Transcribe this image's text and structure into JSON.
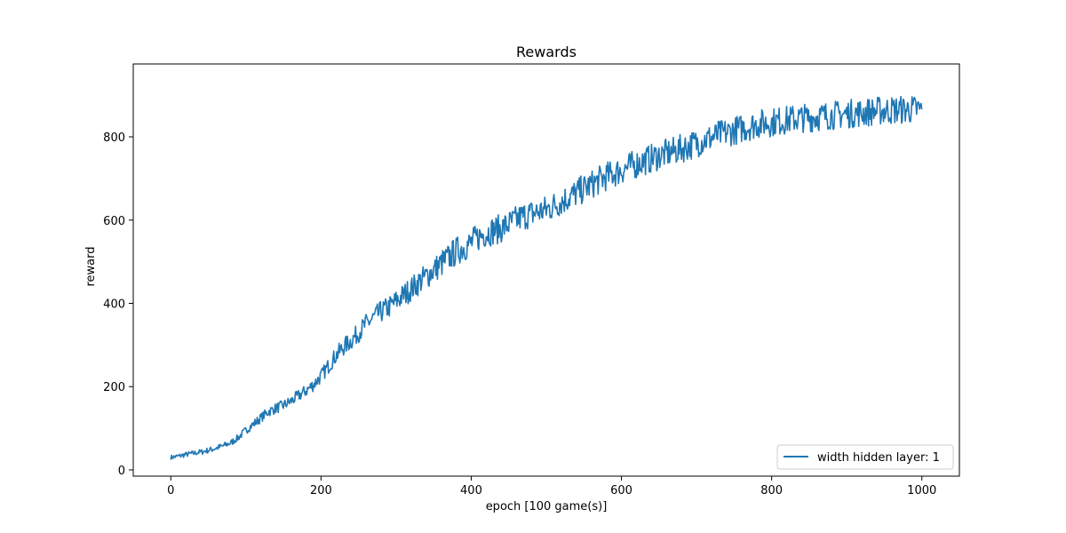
{
  "chart_data": {
    "type": "line",
    "title": "Rewards",
    "xlabel": "epoch [100 game(s)]",
    "ylabel": "reward",
    "xlim": [
      -50,
      1050
    ],
    "ylim": [
      -15,
      975
    ],
    "xticks": [
      0,
      200,
      400,
      600,
      800,
      1000
    ],
    "yticks": [
      0,
      200,
      400,
      600,
      800
    ],
    "xtick_labels": [
      "0",
      "200",
      "400",
      "600",
      "800",
      "1000"
    ],
    "ytick_labels": [
      "0",
      "200",
      "400",
      "600",
      "800"
    ],
    "grid": false,
    "legend_position": "lower-right",
    "series": [
      {
        "name": "width hidden layer: 1",
        "color": "#1f77b4",
        "x": [
          0,
          10,
          20,
          30,
          40,
          50,
          60,
          70,
          80,
          90,
          100,
          110,
          120,
          130,
          140,
          150,
          160,
          170,
          180,
          190,
          200,
          210,
          220,
          230,
          240,
          250,
          260,
          270,
          280,
          290,
          300,
          310,
          320,
          330,
          340,
          350,
          360,
          370,
          380,
          390,
          400,
          410,
          420,
          430,
          440,
          450,
          460,
          470,
          480,
          490,
          500,
          510,
          520,
          530,
          540,
          550,
          560,
          570,
          580,
          590,
          600,
          610,
          620,
          630,
          640,
          650,
          660,
          670,
          680,
          690,
          700,
          710,
          720,
          730,
          740,
          750,
          760,
          770,
          780,
          790,
          800,
          810,
          820,
          830,
          840,
          850,
          860,
          870,
          880,
          890,
          900,
          910,
          920,
          930,
          940,
          950,
          960,
          970,
          980,
          990,
          1000
        ],
        "values": [
          30,
          33,
          37,
          40,
          43,
          47,
          52,
          58,
          65,
          78,
          95,
          110,
          125,
          140,
          148,
          155,
          165,
          178,
          190,
          205,
          225,
          250,
          275,
          295,
          310,
          330,
          350,
          365,
          380,
          390,
          405,
          420,
          435,
          450,
          465,
          480,
          495,
          510,
          525,
          535,
          545,
          560,
          570,
          575,
          580,
          590,
          600,
          610,
          615,
          620,
          625,
          635,
          645,
          655,
          665,
          675,
          685,
          695,
          705,
          712,
          720,
          728,
          735,
          742,
          748,
          755,
          760,
          765,
          772,
          778,
          785,
          792,
          798,
          805,
          810,
          815,
          820,
          825,
          830,
          833,
          835,
          838,
          840,
          843,
          845,
          846,
          848,
          850,
          852,
          853,
          855,
          857,
          858,
          860,
          862,
          863,
          864,
          865,
          865,
          866,
          866
        ]
      }
    ]
  }
}
